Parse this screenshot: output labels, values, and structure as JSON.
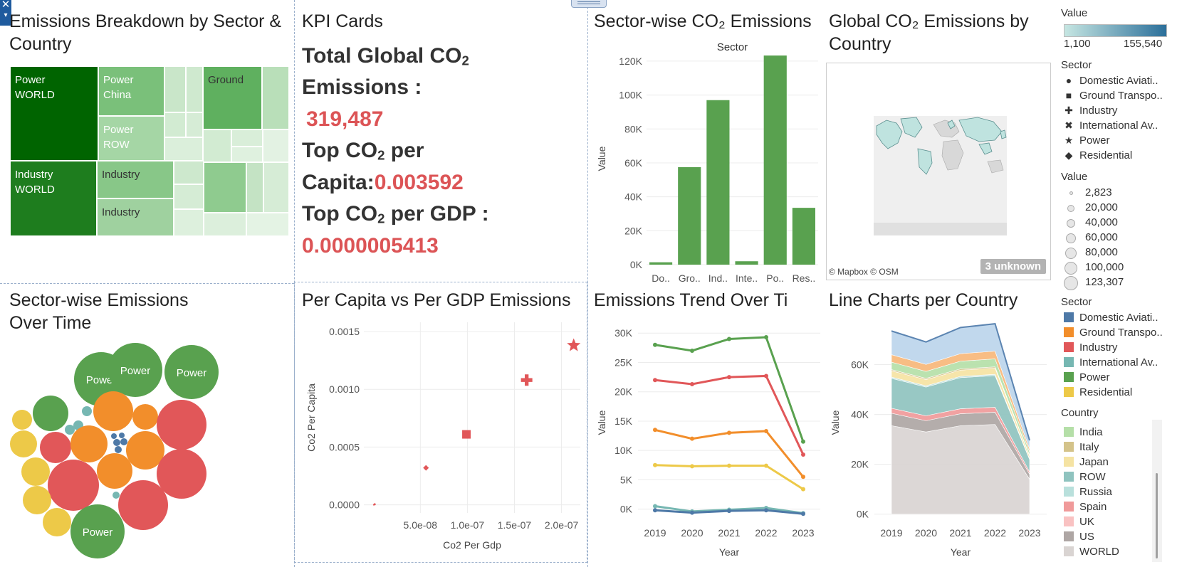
{
  "titles": {
    "treemap": "Emissions Breakdown by Sector & Country",
    "kpi": "KPI Cards",
    "bar": "Sector-wise CO₂ Emissions",
    "map": "Global CO₂ Emissions by Country",
    "bubble": "Sector-wise Emissions Over Time",
    "scatter": "Per Capita vs Per GDP Emissions",
    "trend": "Emissions Trend Over Ti",
    "area": "Line Charts per Country"
  },
  "treemap_labels": {
    "power_world": "Power\nWORLD",
    "power_china": "Power\nChina",
    "power_row": "Power\nROW",
    "ground": "Ground",
    "industry_world": "Industry\nWORLD",
    "industry_a": "Industry",
    "industry_b": "Industry"
  },
  "kpi": {
    "total_label": "Total Global CO",
    "total_label2": "Emissions :",
    "total_value": "319,487",
    "per_capita_label": "Top CO",
    "per_capita_label_b": " per",
    "per_capita_label2": "Capita:",
    "per_capita_value": "0.003592",
    "per_gdp_label": "Top CO",
    "per_gdp_label_b": " per GDP :",
    "per_gdp_value": "0.0000005413"
  },
  "bubble_labels": [
    "Power",
    "Power",
    "Power",
    "Power"
  ],
  "map": {
    "credit": "© Mapbox © OSM",
    "unknown_badge": "3 unknown"
  },
  "legend": {
    "value_color_title": "Value",
    "value_color_min": "1,100",
    "value_color_max": "155,540",
    "sector_shape_title": "Sector",
    "sector_shapes": [
      {
        "label": "Domestic Aviati..",
        "shape": "circle"
      },
      {
        "label": "Ground Transpo..",
        "shape": "square"
      },
      {
        "label": "Industry",
        "shape": "plus"
      },
      {
        "label": "International Av..",
        "shape": "cross"
      },
      {
        "label": "Power",
        "shape": "star"
      },
      {
        "label": "Residential",
        "shape": "diamond"
      }
    ],
    "size_title": "Value",
    "sizes": [
      "2,823",
      "20,000",
      "40,000",
      "60,000",
      "80,000",
      "100,000",
      "123,307"
    ],
    "sector_color_title": "Sector",
    "sector_colors": [
      {
        "label": "Domestic Aviati..",
        "color": "#4e79a7"
      },
      {
        "label": "Ground Transpo..",
        "color": "#f28e2b"
      },
      {
        "label": "Industry",
        "color": "#e15759"
      },
      {
        "label": "International Av..",
        "color": "#76b7b2"
      },
      {
        "label": "Power",
        "color": "#59a14f"
      },
      {
        "label": "Residential",
        "color": "#edc948"
      }
    ],
    "country_title": "Country",
    "countries": [
      {
        "label": "India",
        "color": "#b5dfa8"
      },
      {
        "label": "Italy",
        "color": "#d4c38a"
      },
      {
        "label": "Japan",
        "color": "#f5e3a3"
      },
      {
        "label": "ROW",
        "color": "#8fc3bf"
      },
      {
        "label": "Russia",
        "color": "#b9e0dc"
      },
      {
        "label": "Spain",
        "color": "#f09a9a"
      },
      {
        "label": "UK",
        "color": "#f9c2c2"
      },
      {
        "label": "US",
        "color": "#aea6a4"
      },
      {
        "label": "WORLD",
        "color": "#d9d4d2"
      }
    ]
  },
  "chart_data": [
    {
      "type": "bar",
      "title": "Sector",
      "ylabel": "Value",
      "categories": [
        "Do..",
        "Gro..",
        "Ind..",
        "Inte..",
        "Po..",
        "Res.."
      ],
      "values": [
        1400,
        57500,
        97000,
        2000,
        123307,
        33500
      ],
      "ylim": [
        0,
        125000
      ],
      "yticks": [
        0,
        20000,
        40000,
        60000,
        80000,
        100000,
        120000
      ],
      "ytick_labels": [
        "0K",
        "20K",
        "40K",
        "60K",
        "80K",
        "100K",
        "120K"
      ],
      "color": "#59a14f"
    },
    {
      "type": "scatter",
      "xlabel": "Co2 Per Gdp",
      "ylabel": "Co2 Per Capita",
      "xticks": [
        5e-08,
        1e-07,
        1.5e-07,
        2e-07
      ],
      "xtick_labels": [
        "5.0e-08",
        "1.0e-07",
        "1.5e-07",
        "2.0e-07"
      ],
      "yticks": [
        0,
        0.0005,
        0.001,
        0.0015
      ],
      "ytick_labels": [
        "0.0000",
        "0.0005",
        "0.0010",
        "0.0015"
      ],
      "xlim": [
        -1e-08,
        2.2e-07
      ],
      "ylim": [
        -7e-05,
        0.00158
      ],
      "points": [
        {
          "x": 1.5e-09,
          "y": 5e-06,
          "shape": "circle",
          "size": 3
        },
        {
          "x": 5e-10,
          "y": 0.0,
          "shape": "circle",
          "size": 2
        },
        {
          "x": 5.6e-08,
          "y": 0.00032,
          "shape": "diamond",
          "size": 8
        },
        {
          "x": 9.9e-08,
          "y": 0.00061,
          "shape": "square",
          "size": 12
        },
        {
          "x": 1.63e-07,
          "y": 0.00108,
          "shape": "plus",
          "size": 16
        },
        {
          "x": 2.13e-07,
          "y": 0.00138,
          "shape": "star",
          "size": 20
        }
      ],
      "color": "#e15759"
    },
    {
      "type": "line",
      "xlabel": "Year",
      "ylabel": "Value",
      "x": [
        "2019",
        "2020",
        "2021",
        "2022",
        "2023"
      ],
      "ylim": [
        -1500,
        31000
      ],
      "yticks": [
        0,
        5000,
        10000,
        15000,
        20000,
        25000,
        30000
      ],
      "ytick_labels": [
        "0K",
        "5K",
        "10K",
        "15K",
        "20K",
        "25K",
        "30K"
      ],
      "series": [
        {
          "name": "Power",
          "color": "#59a14f",
          "values": [
            28000,
            27000,
            29000,
            29300,
            11500
          ]
        },
        {
          "name": "Industry",
          "color": "#e15759",
          "values": [
            22000,
            21300,
            22500,
            22700,
            9300
          ]
        },
        {
          "name": "Ground Transpo..",
          "color": "#f28e2b",
          "values": [
            13500,
            12000,
            13000,
            13300,
            5500
          ]
        },
        {
          "name": "Residential",
          "color": "#edc948",
          "values": [
            7500,
            7300,
            7400,
            7400,
            3400
          ]
        },
        {
          "name": "International Av..",
          "color": "#76b7b2",
          "values": [
            500,
            -400,
            -100,
            200,
            -700
          ]
        },
        {
          "name": "Domestic Aviati..",
          "color": "#4e79a7",
          "values": [
            -200,
            -600,
            -300,
            -200,
            -800
          ]
        }
      ]
    },
    {
      "type": "area",
      "xlabel": "Year",
      "ylabel": "Value",
      "x": [
        "2019",
        "2020",
        "2021",
        "2022",
        "2023"
      ],
      "ylim": [
        -1500,
        75000
      ],
      "yticks": [
        0,
        20000,
        40000,
        60000
      ],
      "ytick_labels": [
        "0K",
        "20K",
        "40K",
        "60K"
      ],
      "series": [
        {
          "name": "WORLD",
          "color": "#d9d4d2",
          "values": [
            35500,
            33000,
            35500,
            36000,
            14000
          ]
        },
        {
          "name": "US",
          "color": "#aea6a4",
          "values": [
            5000,
            4500,
            4800,
            4900,
            2000
          ]
        },
        {
          "name": "Spain",
          "color": "#f09a9a",
          "values": [
            2000,
            2000,
            2000,
            2000,
            900
          ]
        },
        {
          "name": "ROW",
          "color": "#8fc3bf",
          "values": [
            12000,
            11500,
            12500,
            12700,
            5000
          ]
        },
        {
          "name": "Russia",
          "color": "#b9e0dc",
          "values": [
            500,
            500,
            500,
            500,
            300
          ]
        },
        {
          "name": "Japan",
          "color": "#f5e3a3",
          "values": [
            2500,
            2500,
            2500,
            2500,
            1100
          ]
        },
        {
          "name": "Italy",
          "color": "#d4c38a",
          "values": [
            500,
            500,
            500,
            500,
            300
          ]
        },
        {
          "name": "India",
          "color": "#b5dfa8",
          "values": [
            3000,
            2800,
            3100,
            3200,
            1300
          ]
        },
        {
          "name": "Ground Transpo..",
          "color": "#f7b77a",
          "values": [
            3000,
            2800,
            3000,
            3100,
            1200
          ]
        },
        {
          "name": "Domestic Aviati..",
          "color": "#bcd5ec",
          "values": [
            9500,
            9000,
            10500,
            11000,
            3500
          ]
        }
      ]
    }
  ]
}
